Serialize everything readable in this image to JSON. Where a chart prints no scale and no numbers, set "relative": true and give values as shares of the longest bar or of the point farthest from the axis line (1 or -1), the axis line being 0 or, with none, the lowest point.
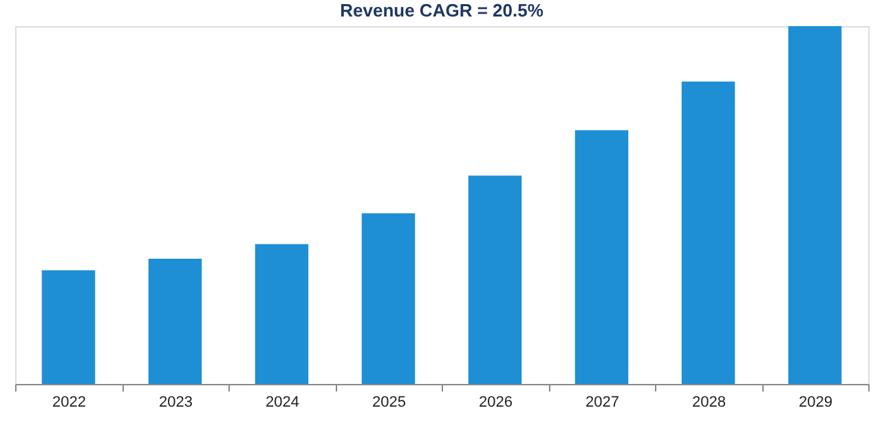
{
  "chart_data": {
    "type": "bar",
    "title": "Revenue CAGR = 20.5%",
    "relative": true,
    "categories": [
      "2022",
      "2023",
      "2024",
      "2025",
      "2026",
      "2027",
      "2028",
      "2029"
    ],
    "values": [
      0.318,
      0.35,
      0.391,
      0.477,
      0.582,
      0.709,
      0.845,
      1
    ],
    "color": "#1e8fd5",
    "grid": false
  }
}
